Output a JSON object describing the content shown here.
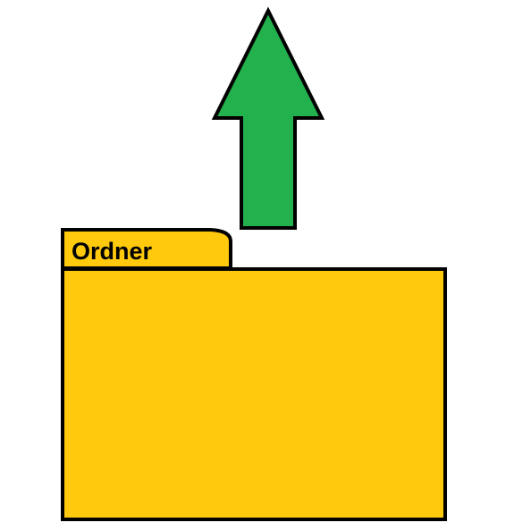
{
  "folder": {
    "label": "Ordner",
    "fill_color": "#FFC90E",
    "outline_color": "#000000"
  },
  "arrow": {
    "direction": "up",
    "fill_color": "#22B14C",
    "outline_color": "#000000"
  },
  "background_color": "#FFFFFF"
}
